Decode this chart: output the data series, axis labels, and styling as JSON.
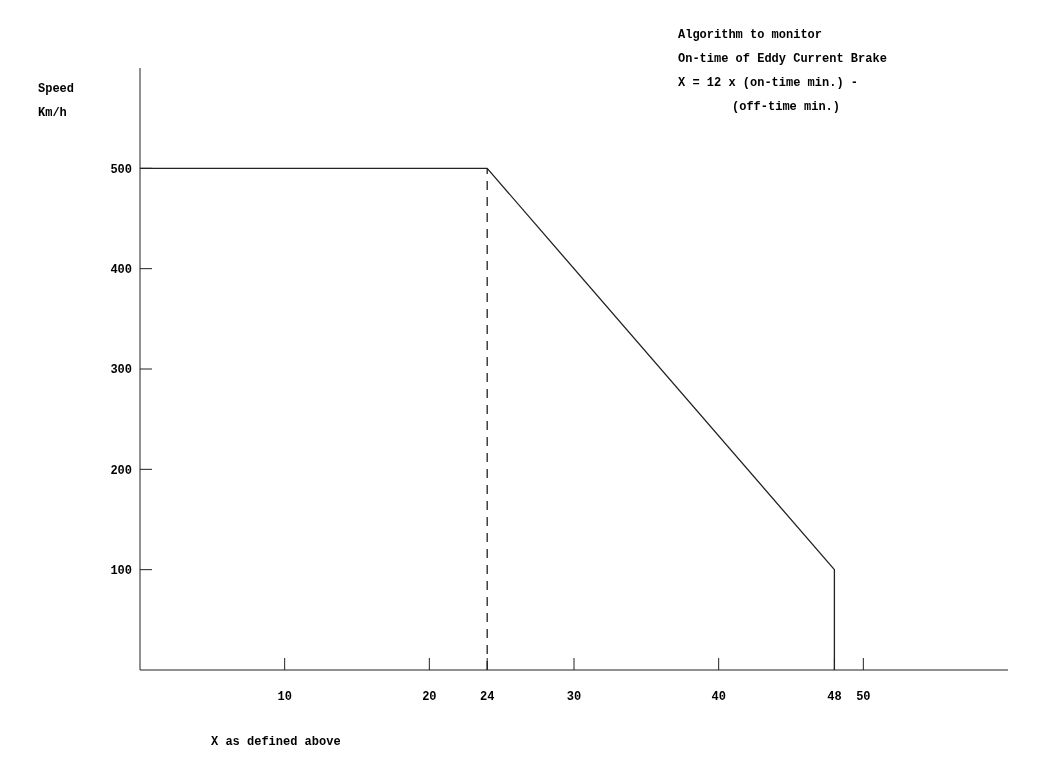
{
  "chart_data": {
    "type": "line",
    "xlabel": "X as defined above",
    "ylabel": "Speed Km/h",
    "annotations": [
      "Algorithm to monitor",
      "On-time of Eddy Current Brake",
      "X = 12 x (on-time min.) -",
      "(off-time min.)"
    ],
    "series": [
      {
        "x": [
          0,
          24,
          48,
          48
        ],
        "values": [
          500,
          500,
          100,
          0
        ],
        "color": "#222222",
        "line_style": "solid"
      }
    ],
    "ref_lines": [
      {
        "axis": "x",
        "value": 24,
        "color": "#222222",
        "line_style": "dashed"
      }
    ],
    "xlim": [
      0,
      60
    ],
    "xticks": [
      10,
      20,
      24,
      30,
      40,
      48,
      50
    ],
    "ylim": [
      0,
      600
    ],
    "yticks": [
      100,
      200,
      300,
      400,
      500
    ],
    "grid": false,
    "marker": "none"
  }
}
